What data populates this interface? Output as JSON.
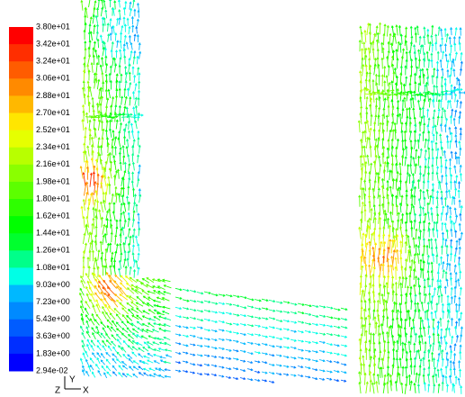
{
  "legend": {
    "labels": [
      "3.80e+01",
      "3.42e+01",
      "3.24e+01",
      "3.06e+01",
      "2.88e+01",
      "2.70e+01",
      "2.52e+01",
      "2.34e+01",
      "2.16e+01",
      "1.98e+01",
      "1.80e+01",
      "1.62e+01",
      "1.44e+01",
      "1.26e+01",
      "1.08e+01",
      "9.03e+00",
      "7.23e+00",
      "5.43e+00",
      "3.63e+00",
      "1.83e+00",
      "2.94e-02"
    ],
    "colors": [
      "#ff0000",
      "#ff2e00",
      "#ff5c00",
      "#ff8a00",
      "#ffb800",
      "#ffe600",
      "#e6ff00",
      "#b8ff00",
      "#8aff00",
      "#5cff00",
      "#2eff00",
      "#00ff00",
      "#00ff2e",
      "#00ff8a",
      "#00ffe6",
      "#00b8ff",
      "#008aff",
      "#005cff",
      "#002eff",
      "#0000ff"
    ]
  },
  "axes": {
    "y": "Y",
    "z": "Z",
    "x": "X"
  }
}
